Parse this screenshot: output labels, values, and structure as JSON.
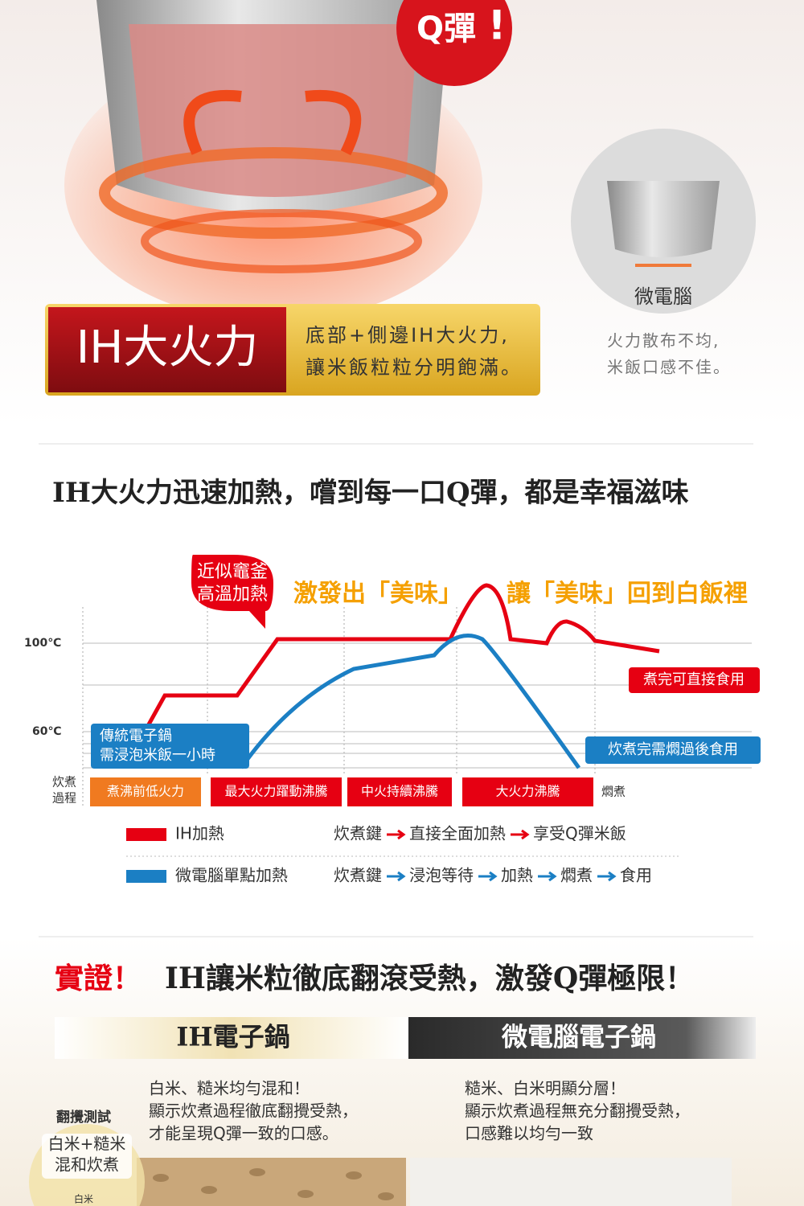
{
  "hero": {
    "badge": "Q彈",
    "exclaim": "!",
    "ih_label": "IH大火力",
    "ih_desc": [
      "底部+側邊IH大火力,",
      "讓米飯粒粒分明飽滿。"
    ],
    "micro_label": "微電腦",
    "micro_desc": [
      "火力散布不均,",
      "米飯口感不佳。"
    ]
  },
  "section1": {
    "title": "IH大火力迅速加熱，嚐到每一口Q彈，都是幸福滋味",
    "bubble": [
      "近似竈釜",
      "高溫加熱"
    ],
    "phrase1": "激發出「美味」",
    "phrase2": "讓「美味」回到白飯裡",
    "y_labels": [
      "100℃",
      "60℃"
    ],
    "tag_red": "煮完可直接食用",
    "tag_blue_left": [
      "傳統電子鍋",
      "需浸泡米飯一小時"
    ],
    "tag_blue_right": "炊煮完需燜過後食用",
    "process_label": [
      "炊煮",
      "過程"
    ],
    "stages": [
      "煮沸前低火力",
      "最大火力躍動沸騰",
      "中火持續沸騰",
      "大火力沸騰",
      "燜煮"
    ],
    "legend": [
      {
        "name": "IH加熱",
        "steps": [
          "炊煮鍵",
          "直接全面加熱",
          "享受Q彈米飯"
        ]
      },
      {
        "name": "微電腦單點加熱",
        "steps": [
          "炊煮鍵",
          "浸泡等待",
          "加熱",
          "燜煮",
          "食用"
        ]
      }
    ]
  },
  "section2": {
    "title_prefix": "實證！",
    "title": "IH讓米粒徹底翻滾受熱，激發Q彈極限！",
    "ih_header": "IH電子鍋",
    "micro_header": "微電腦電子鍋",
    "ih_text": [
      "白米、糙米均勻混和！",
      "顯示炊煮過程徹底翻攪受熱，",
      "才能呈現Q彈一致的口感。"
    ],
    "micro_text": [
      "糙米、白米明顯分層！",
      "顯示炊煮過程無充分翻攪受熱，",
      "口感難以均勻一致"
    ],
    "test_label": "翻攪測試",
    "badge": [
      "白米+糙米",
      "混和炊煮"
    ],
    "rice_label": "白米"
  }
}
